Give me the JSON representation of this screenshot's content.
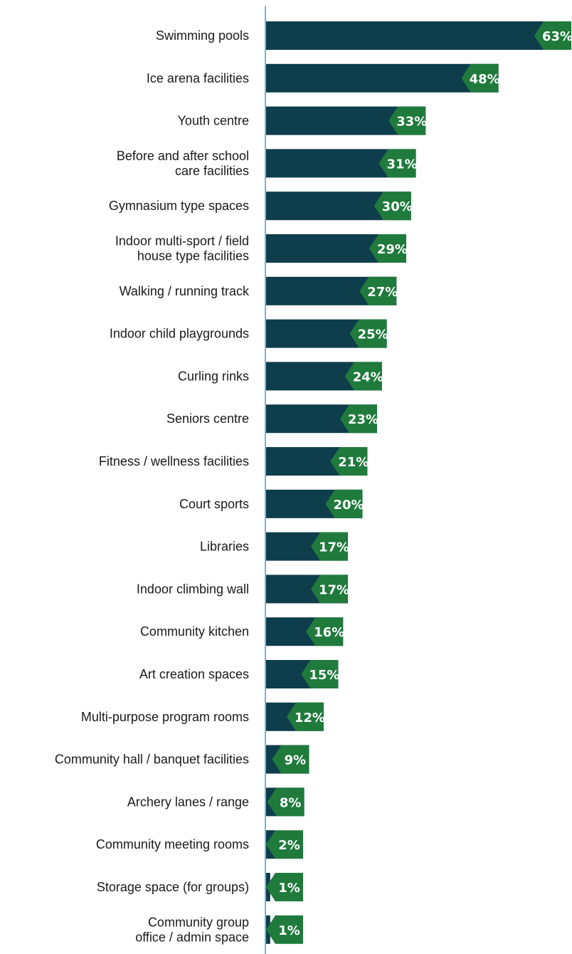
{
  "chart_data": {
    "type": "bar",
    "orientation": "horizontal",
    "categories": [
      [
        "Swimming pools"
      ],
      [
        "Ice arena facilities"
      ],
      [
        "Youth centre"
      ],
      [
        "Before and after school",
        "care facilities"
      ],
      [
        "Gymnasium type spaces"
      ],
      [
        "Indoor multi-sport / field",
        "house type facilities"
      ],
      [
        "Walking / running track"
      ],
      [
        "Indoor child playgrounds"
      ],
      [
        "Curling rinks"
      ],
      [
        "Seniors centre"
      ],
      [
        "Fitness / wellness facilities"
      ],
      [
        "Court sports"
      ],
      [
        "Libraries"
      ],
      [
        "Indoor climbing wall"
      ],
      [
        "Community kitchen"
      ],
      [
        "Art creation spaces"
      ],
      [
        "Multi-purpose program rooms"
      ],
      [
        "Community hall / banquet facilities"
      ],
      [
        "Archery lanes / range"
      ],
      [
        "Community meeting rooms"
      ],
      [
        "Storage space (for groups)"
      ],
      [
        "Community group",
        "office / admin space"
      ]
    ],
    "values": [
      63,
      48,
      33,
      31,
      30,
      29,
      27,
      25,
      24,
      23,
      21,
      20,
      17,
      17,
      16,
      15,
      12,
      9,
      8,
      2,
      1,
      1
    ],
    "value_suffix": "%",
    "xlim": [
      0,
      63
    ],
    "grid": false,
    "colors": {
      "bar": "#0e3d4b",
      "label_tag": "#1f7a3c",
      "axis": "#6ab7dc",
      "label_text": "#ffffff"
    }
  }
}
